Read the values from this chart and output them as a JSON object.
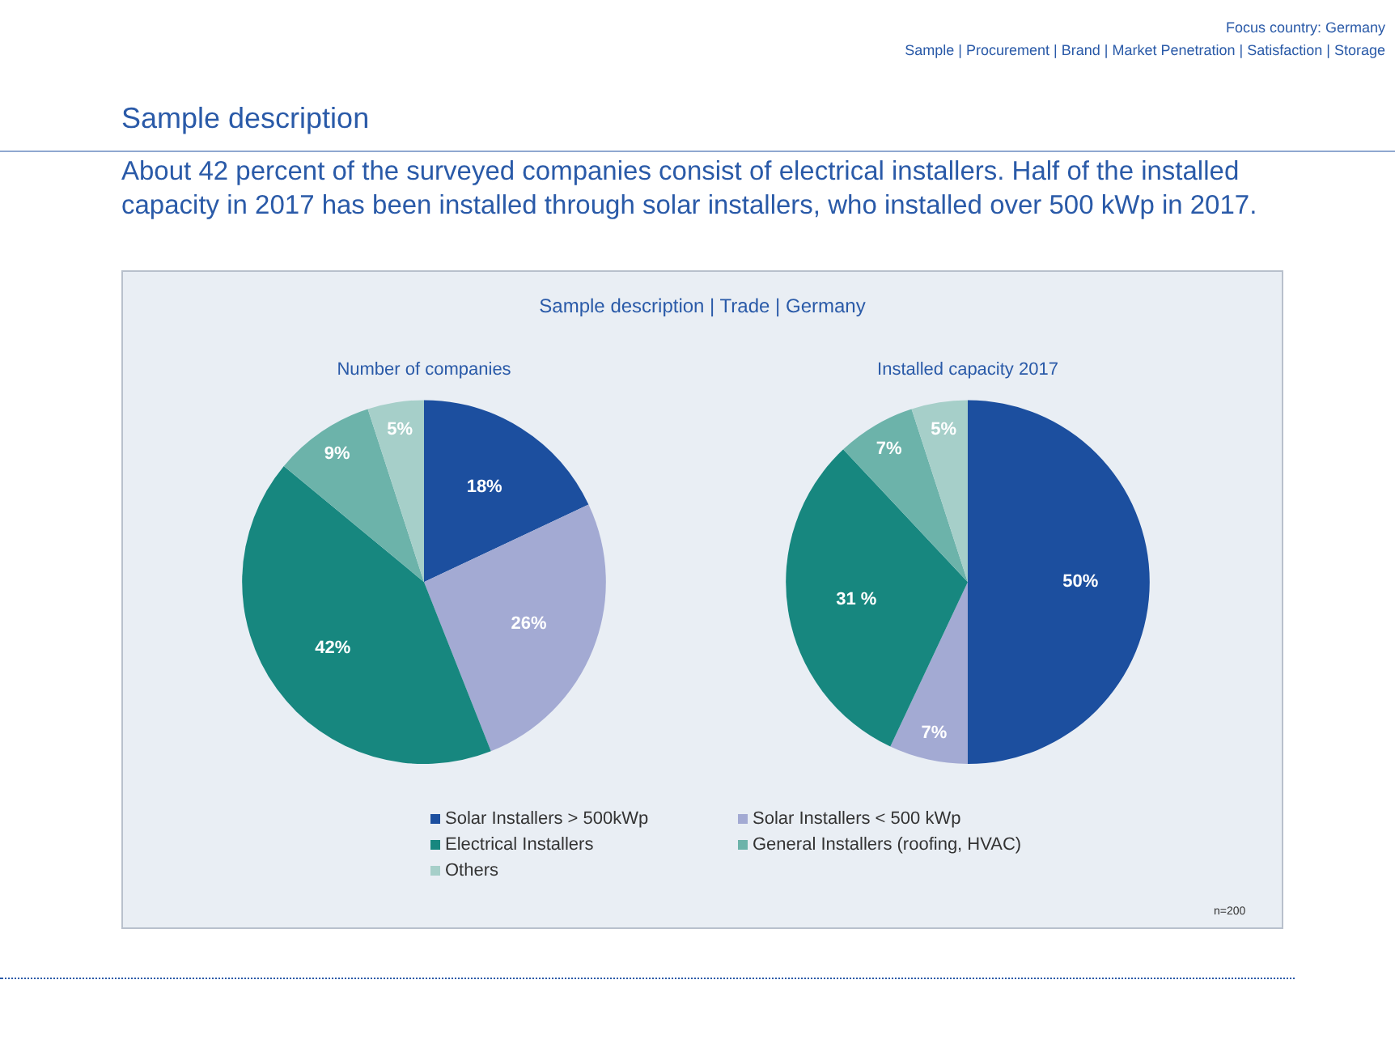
{
  "chart_data": [
    {
      "type": "pie",
      "title": "Number of companies",
      "categories": [
        "Solar Installers > 500kWp",
        "Solar Installers < 500 kWp",
        "Electrical Installers",
        "General Installers (roofing, HVAC)",
        "Others"
      ],
      "values": [
        18,
        26,
        42,
        9,
        5
      ],
      "value_labels": [
        "18%",
        "26%",
        "42%",
        "9%",
        "5%"
      ],
      "colors": [
        "#1c4f9f",
        "#a3aad3",
        "#17877f",
        "#6cb3aa",
        "#a6cfc9"
      ],
      "legend": "bottom",
      "annotations": [
        "Focus country: Germany",
        "Sample | Procurement | Brand | Market Penetration | Satisfaction | Storage",
        "Sample description",
        "About 42 percent of the surveyed companies consist of electrical installers. Half of the installed capacity in 2017 has been installed through solar installers, who installed over 500 kWp in 2017.",
        "Sample description | Trade | Germany",
        "n=200"
      ]
    },
    {
      "type": "pie",
      "title": "Installed capacity 2017",
      "categories": [
        null,
        null,
        null,
        null,
        null
      ],
      "values": [
        50,
        7,
        31,
        7,
        5
      ],
      "value_labels": [
        "50%",
        "7%",
        "31 %",
        "7%",
        "5%"
      ],
      "colors": [
        "#1c4f9f",
        "#a3aad3",
        "#17877f",
        "#6cb3aa",
        "#a6cfc9"
      ]
    }
  ]
}
